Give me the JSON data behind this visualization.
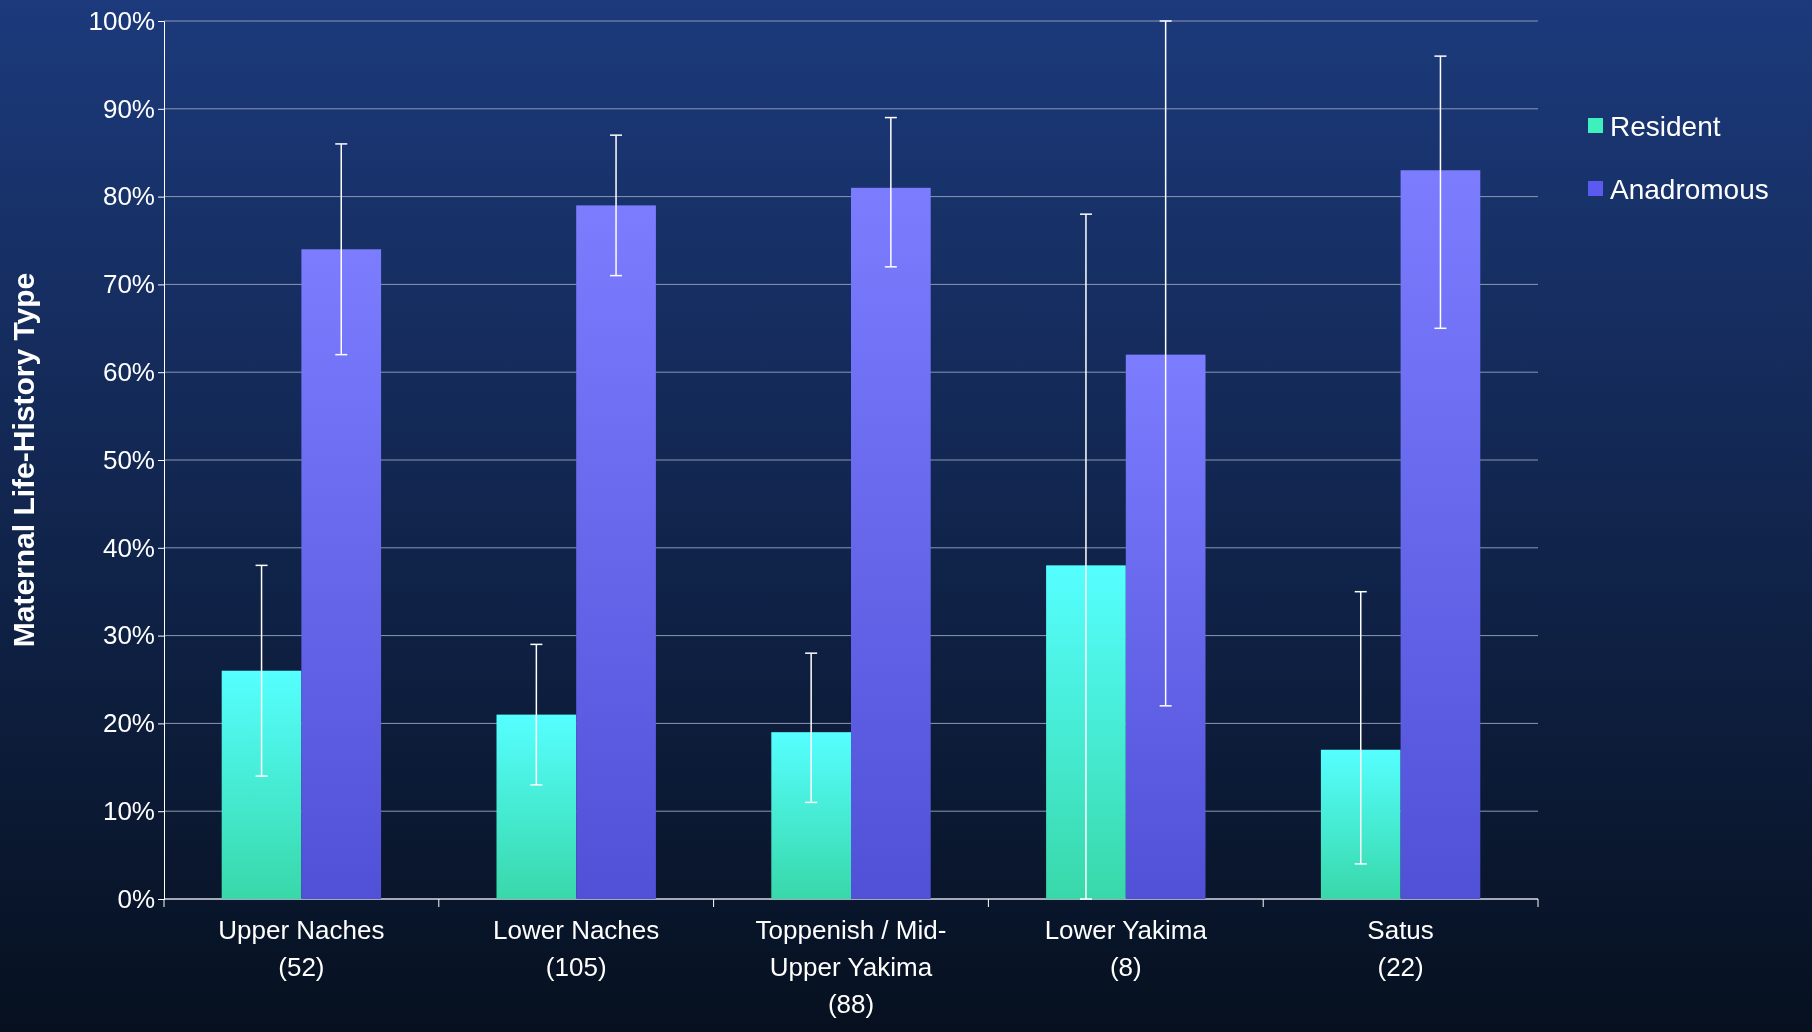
{
  "chart_data": {
    "type": "bar",
    "ylabel": "Maternal Life-History Type",
    "categories": [
      "Upper Naches\n(52)",
      "Lower Naches\n(105)",
      "Toppenish / Mid-\nUpper Yakima\n(88)",
      "Lower Yakima\n(8)",
      "Satus\n(22)"
    ],
    "series": [
      {
        "name": "Resident",
        "color": "#3ef0bc",
        "values": [
          26,
          21,
          19,
          38,
          17
        ],
        "errors": [
          [
            14,
            38
          ],
          [
            13,
            29
          ],
          [
            11,
            28
          ],
          [
            0,
            78
          ],
          [
            4,
            35
          ]
        ]
      },
      {
        "name": "Anadromous",
        "color": "#5a5af0",
        "values": [
          74,
          79,
          81,
          62,
          83
        ],
        "errors": [
          [
            62,
            86
          ],
          [
            71,
            87
          ],
          [
            72,
            89
          ],
          [
            22,
            100
          ],
          [
            65,
            96
          ]
        ]
      }
    ],
    "ylim": [
      0,
      100
    ],
    "yticks": [
      {
        "value": 0,
        "label": "0%"
      },
      {
        "value": 10,
        "label": "10%"
      },
      {
        "value": 20,
        "label": "20%"
      },
      {
        "value": 30,
        "label": "30%"
      },
      {
        "value": 40,
        "label": "40%"
      },
      {
        "value": 50,
        "label": "50%"
      },
      {
        "value": 60,
        "label": "60%"
      },
      {
        "value": 70,
        "label": "70%"
      },
      {
        "value": 80,
        "label": "80%"
      },
      {
        "value": 90,
        "label": "90%"
      },
      {
        "value": 100,
        "label": "100%"
      }
    ],
    "grid": "y",
    "legend": "right"
  }
}
